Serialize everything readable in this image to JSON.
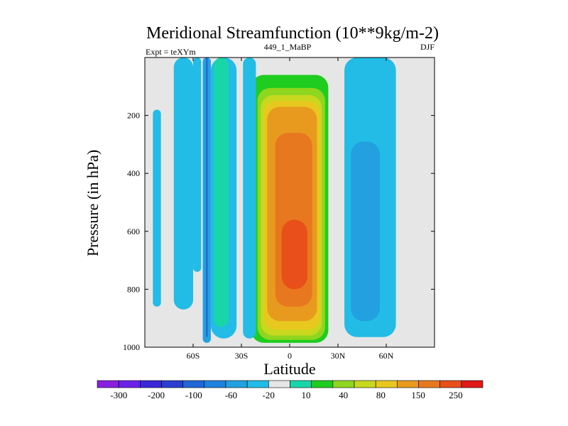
{
  "chart_data": {
    "type": "heatmap",
    "title": "Meridional Streamfunction (10**9kg/m-2)",
    "subtitle_left": "Expt = teXYm",
    "subtitle_center": "449_1_MaBP",
    "subtitle_right": "DJF",
    "xlabel": "Latitude",
    "ylabel": "Pressure (in hPa)",
    "xlim": [
      -90,
      90
    ],
    "ylim": [
      1000,
      0
    ],
    "x_ticks": [
      {
        "value": -60,
        "label": "60S"
      },
      {
        "value": -30,
        "label": "30S"
      },
      {
        "value": 0,
        "label": "0"
      },
      {
        "value": 30,
        "label": "30N"
      },
      {
        "value": 60,
        "label": "60N"
      }
    ],
    "y_ticks": [
      {
        "value": 200,
        "label": "200"
      },
      {
        "value": 400,
        "label": "400"
      },
      {
        "value": 600,
        "label": "600"
      },
      {
        "value": 800,
        "label": "800"
      },
      {
        "value": 1000,
        "label": "1000"
      }
    ],
    "colorbar": {
      "colors": [
        "#8a1fe0",
        "#6a22e8",
        "#3b28d8",
        "#2a3fcf",
        "#1f66d6",
        "#1f82dd",
        "#22a0e0",
        "#22bce6",
        "#e6e6e6",
        "#19d6a8",
        "#1fcc1f",
        "#8fd61f",
        "#c8d81f",
        "#e8c81f",
        "#e89a1f",
        "#e8781f",
        "#e84f1a",
        "#e01818"
      ],
      "labels": [
        {
          "after_bin": 1,
          "label": "-300"
        },
        {
          "after_bin": 3,
          "label": "-200"
        },
        {
          "after_bin": 5,
          "label": "-100"
        },
        {
          "after_bin": 7,
          "label": "-60"
        },
        {
          "after_bin": 9,
          "label": "-20"
        },
        {
          "after_bin": 11,
          "label": "10"
        },
        {
          "after_bin": 13,
          "label": "40"
        },
        {
          "after_bin": 15,
          "label": "80"
        },
        {
          "after_bin": 17,
          "label": "150"
        },
        {
          "after_bin": 19,
          "label": "250"
        }
      ]
    },
    "fields": [
      {
        "name": "positive-cell",
        "lat_center": 1,
        "lat_halfwidth": 24,
        "p_top": 60,
        "p_bottom": 985,
        "levels": [
          {
            "lat_min": -24,
            "lat_max": 24,
            "p_top": 60,
            "p_bottom": 985,
            "color": "#1fcc1f",
            "value": 40
          },
          {
            "lat_min": -20,
            "lat_max": 22,
            "p_top": 105,
            "p_bottom": 975,
            "color": "#8fd61f",
            "value": 80
          },
          {
            "lat_min": -18,
            "lat_max": 20,
            "p_top": 130,
            "p_bottom": 960,
            "color": "#c8d81f",
            "value": 100
          },
          {
            "lat_min": -16,
            "lat_max": 19,
            "p_top": 150,
            "p_bottom": 940,
            "color": "#e8c81f",
            "value": 120
          },
          {
            "lat_min": -14,
            "lat_max": 17,
            "p_top": 170,
            "p_bottom": 910,
            "color": "#e89a1f",
            "value": 150
          },
          {
            "lat_min": -9,
            "lat_max": 14,
            "p_top": 260,
            "p_bottom": 860,
            "color": "#e8781f",
            "value": 200
          },
          {
            "lat_min": -5,
            "lat_max": 11,
            "p_top": 560,
            "p_bottom": 800,
            "color": "#e84f1a",
            "value": 250
          }
        ]
      },
      {
        "name": "negative-cell-nh",
        "levels": [
          {
            "lat_min": 34,
            "lat_max": 66,
            "p_top": 0,
            "p_bottom": 965,
            "color": "#22bce6",
            "value": -20
          },
          {
            "lat_min": 38,
            "lat_max": 56,
            "p_top": 290,
            "p_bottom": 910,
            "color": "#22a0e0",
            "value": -40
          }
        ]
      },
      {
        "name": "negative-bands-sh",
        "levels": [
          {
            "lat_min": -85,
            "lat_max": -80,
            "p_top": 180,
            "p_bottom": 860,
            "color": "#22bce6",
            "value": -20
          },
          {
            "lat_min": -72,
            "lat_max": -60,
            "p_top": 0,
            "p_bottom": 870,
            "color": "#22bce6",
            "value": -20
          },
          {
            "lat_min": -60,
            "lat_max": -55,
            "p_top": 0,
            "p_bottom": 740,
            "color": "#22bce6",
            "value": -20
          },
          {
            "lat_min": -54,
            "lat_max": -49,
            "p_top": 0,
            "p_bottom": 985,
            "color": "#22a0e0",
            "value": -40
          },
          {
            "lat_min": -52,
            "lat_max": -51,
            "p_top": 0,
            "p_bottom": 965,
            "color": "#1f66d6",
            "value": -80
          },
          {
            "lat_min": -49,
            "lat_max": -33,
            "p_top": 0,
            "p_bottom": 970,
            "color": "#22bce6",
            "value": -20
          },
          {
            "lat_min": -47,
            "lat_max": -38,
            "p_top": 0,
            "p_bottom": 930,
            "color": "#19d6a8",
            "value": 10
          },
          {
            "lat_min": -29,
            "lat_max": -21,
            "p_top": 0,
            "p_bottom": 970,
            "color": "#22bce6",
            "value": -20
          }
        ]
      }
    ]
  }
}
